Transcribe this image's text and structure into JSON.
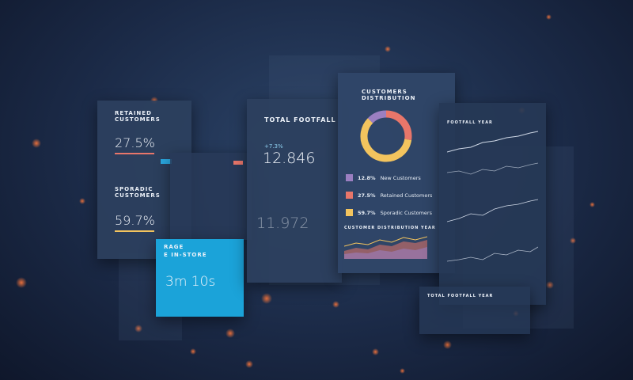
{
  "retained": {
    "title": "RETAINED CUSTOMERS",
    "value": "27.5%"
  },
  "sporadic": {
    "title": "SPORADIC CUSTOMERS",
    "value": "59.7%"
  },
  "visit_time": {
    "title_lines": [
      "RAGE",
      "E IN-STORE"
    ],
    "value": "3m 10s"
  },
  "footfall": {
    "title": "TOTAL FOOTFALL",
    "change": "+7.3%",
    "value": "12.846",
    "previous": "11.972"
  },
  "distribution": {
    "title": "CUSTOMERS DISTRIBUTION",
    "segments": [
      {
        "label": "New Customers",
        "value": 12.8,
        "value_label": "12.8%",
        "color": "#9b7fc1"
      },
      {
        "label": "Retained Customers",
        "value": 27.5,
        "value_label": "27.5%",
        "color": "#e8766a"
      },
      {
        "label": "Sporadic Customers",
        "value": 59.7,
        "value_label": "59.7%",
        "color": "#f3c45e"
      }
    ],
    "chart_title": "CUSTOMER DISTRIBUTION YEAR"
  },
  "footfall_year": {
    "top_title": "FOOTFALL YEAR",
    "bottom_title": "TOTAL FOOTFALL YEAR"
  }
}
